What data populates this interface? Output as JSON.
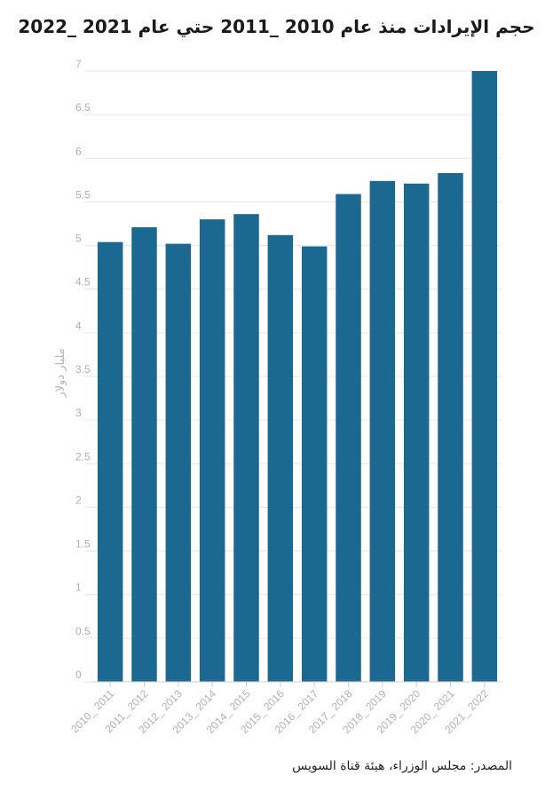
{
  "chart_data": {
    "type": "bar",
    "title": "حجم الإيرادات منذ عام 2010 _2011 حتي عام 2021 _2022",
    "ylabel": "مليار دولار",
    "xlabel": "",
    "ylim": [
      0,
      7
    ],
    "yticks": [
      "0",
      "0.5",
      "1",
      "1.5",
      "2",
      "2.5",
      "3",
      "3.5",
      "4",
      "4.5",
      "5",
      "5.5",
      "6",
      "6.5",
      "7"
    ],
    "categories": [
      "2010_ 2011",
      "2011_ 2012",
      "2012_ 2013",
      "2013_ 2014",
      "2014_ 2015",
      "2015_ 2016",
      "2016_ 2017",
      "2017_ 2018",
      "2018_ 2019",
      "2019_ 2020",
      "2020_ 2021",
      "2021_ 2022"
    ],
    "values": [
      5.04,
      5.21,
      5.02,
      5.3,
      5.36,
      5.12,
      4.99,
      5.59,
      5.74,
      5.71,
      5.83,
      7.0
    ],
    "grid": true,
    "bar_color": "#1b6891",
    "source": "المصدر: مجلس الوزراء، هيئة قناة السويس"
  }
}
